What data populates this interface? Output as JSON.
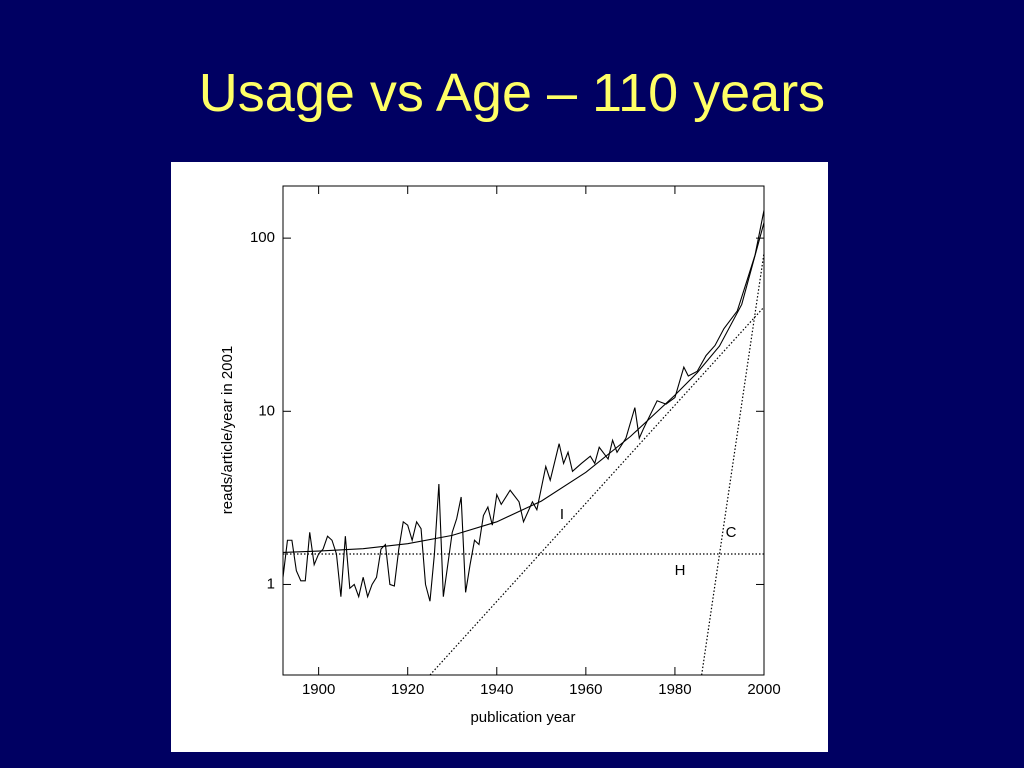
{
  "title": "Usage vs Age – 110 years",
  "chart_data": {
    "type": "line",
    "xlabel": "publication year",
    "ylabel": "reads/article/year in 2001",
    "xlim": [
      1892,
      2000
    ],
    "xticks": [
      1900,
      1920,
      1940,
      1960,
      1980,
      2000
    ],
    "ylim": [
      0.3,
      200
    ],
    "yticks": [
      1,
      10,
      100
    ],
    "ylog": true,
    "annotations": [
      "I",
      "C",
      "H"
    ],
    "series": [
      {
        "style": "solid",
        "color": "#000000",
        "x": [
          1892,
          1893,
          1894,
          1895,
          1896,
          1897,
          1898,
          1899,
          1900,
          1901,
          1902,
          1903,
          1904,
          1905,
          1906,
          1907,
          1908,
          1909,
          1910,
          1911,
          1912,
          1913,
          1914,
          1915,
          1916,
          1917,
          1918,
          1919,
          1920,
          1921,
          1922,
          1923,
          1924,
          1925,
          1926,
          1927,
          1928,
          1929,
          1930,
          1931,
          1932,
          1933,
          1934,
          1935,
          1936,
          1937,
          1938,
          1939,
          1940,
          1941,
          1943,
          1945,
          1946,
          1948,
          1949,
          1951,
          1952,
          1954,
          1955,
          1956,
          1957,
          1959,
          1961,
          1962,
          1963,
          1965,
          1966,
          1967,
          1969,
          1971,
          1972,
          1973,
          1976,
          1978,
          1980,
          1982,
          1983,
          1985,
          1987,
          1989,
          1991,
          1994,
          1996,
          1998,
          2000
        ],
        "values": [
          1.1,
          1.8,
          1.8,
          1.2,
          1.05,
          1.05,
          2.0,
          1.3,
          1.5,
          1.6,
          1.9,
          1.8,
          1.5,
          0.85,
          1.9,
          0.95,
          1.0,
          0.85,
          1.1,
          0.85,
          1.0,
          1.1,
          1.6,
          1.7,
          1.0,
          0.98,
          1.6,
          2.3,
          2.2,
          1.8,
          2.3,
          2.1,
          1.0,
          0.8,
          1.5,
          3.8,
          0.85,
          1.3,
          2.0,
          2.4,
          3.2,
          0.9,
          1.3,
          1.8,
          1.7,
          2.5,
          2.8,
          2.2,
          3.3,
          2.9,
          3.5,
          3.0,
          2.3,
          3.0,
          2.7,
          4.8,
          4.0,
          6.5,
          5.0,
          5.8,
          4.5,
          5.0,
          5.5,
          5.0,
          6.2,
          5.3,
          6.8,
          5.8,
          7.0,
          10.5,
          7.0,
          8.0,
          11.5,
          11.0,
          12.0,
          18,
          16,
          17,
          21,
          24,
          30,
          38,
          55,
          80,
          145
        ]
      },
      {
        "style": "solid",
        "color": "#000000",
        "x": [
          1892,
          1900,
          1910,
          1920,
          1930,
          1940,
          1950,
          1960,
          1970,
          1980,
          1985,
          1990,
          1995,
          2000
        ],
        "values": [
          1.53,
          1.56,
          1.61,
          1.72,
          1.92,
          2.3,
          3.03,
          4.44,
          7.15,
          12.4,
          16.7,
          23.8,
          41.4,
          123
        ]
      },
      {
        "style": "dotted",
        "color": "#000000",
        "x": [
          1892,
          2000
        ],
        "values": [
          1.5,
          1.5
        ]
      },
      {
        "style": "dotted",
        "color": "#000000",
        "x": [
          1925,
          2000
        ],
        "values": [
          0.3,
          40
        ]
      },
      {
        "style": "dotted",
        "color": "#000000",
        "x": [
          1986,
          2000
        ],
        "values": [
          0.3,
          82
        ]
      }
    ]
  }
}
